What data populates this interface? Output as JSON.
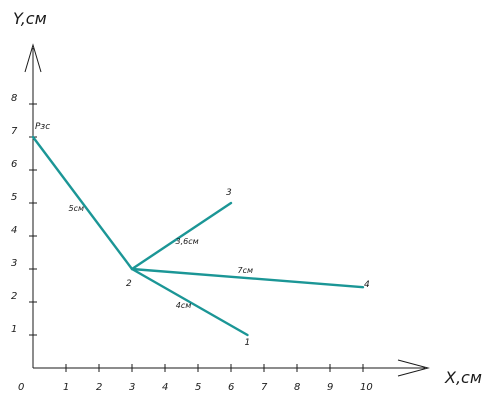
{
  "diagram": {
    "x_axis_title": "X,см",
    "y_axis_title": "Y,см",
    "origin_label": "0",
    "x_ticks": [
      "1",
      "2",
      "3",
      "4",
      "5",
      "6",
      "7",
      "8",
      "9",
      "10"
    ],
    "y_ticks": [
      "1",
      "2",
      "3",
      "4",
      "5",
      "6",
      "7",
      "8"
    ],
    "line_color": "#1b9696",
    "points": [
      {
        "id": "start",
        "label": "Рзс",
        "x": 0,
        "y": 7
      },
      {
        "id": "p2",
        "label": "2",
        "x": 3,
        "y": 3
      },
      {
        "id": "p3",
        "label": "3",
        "x": 6,
        "y": 5
      },
      {
        "id": "p4",
        "label": "4",
        "x": 10,
        "y": 2.45
      },
      {
        "id": "p1",
        "label": "1",
        "x": 6.5,
        "y": 1
      }
    ],
    "segments": [
      {
        "from": "start",
        "to": "p2",
        "label": "5см"
      },
      {
        "from": "p2",
        "to": "p3",
        "label": "3,6см"
      },
      {
        "from": "p2",
        "to": "p4",
        "label": "7см"
      },
      {
        "from": "p2",
        "to": "p1",
        "label": "4см"
      }
    ]
  }
}
